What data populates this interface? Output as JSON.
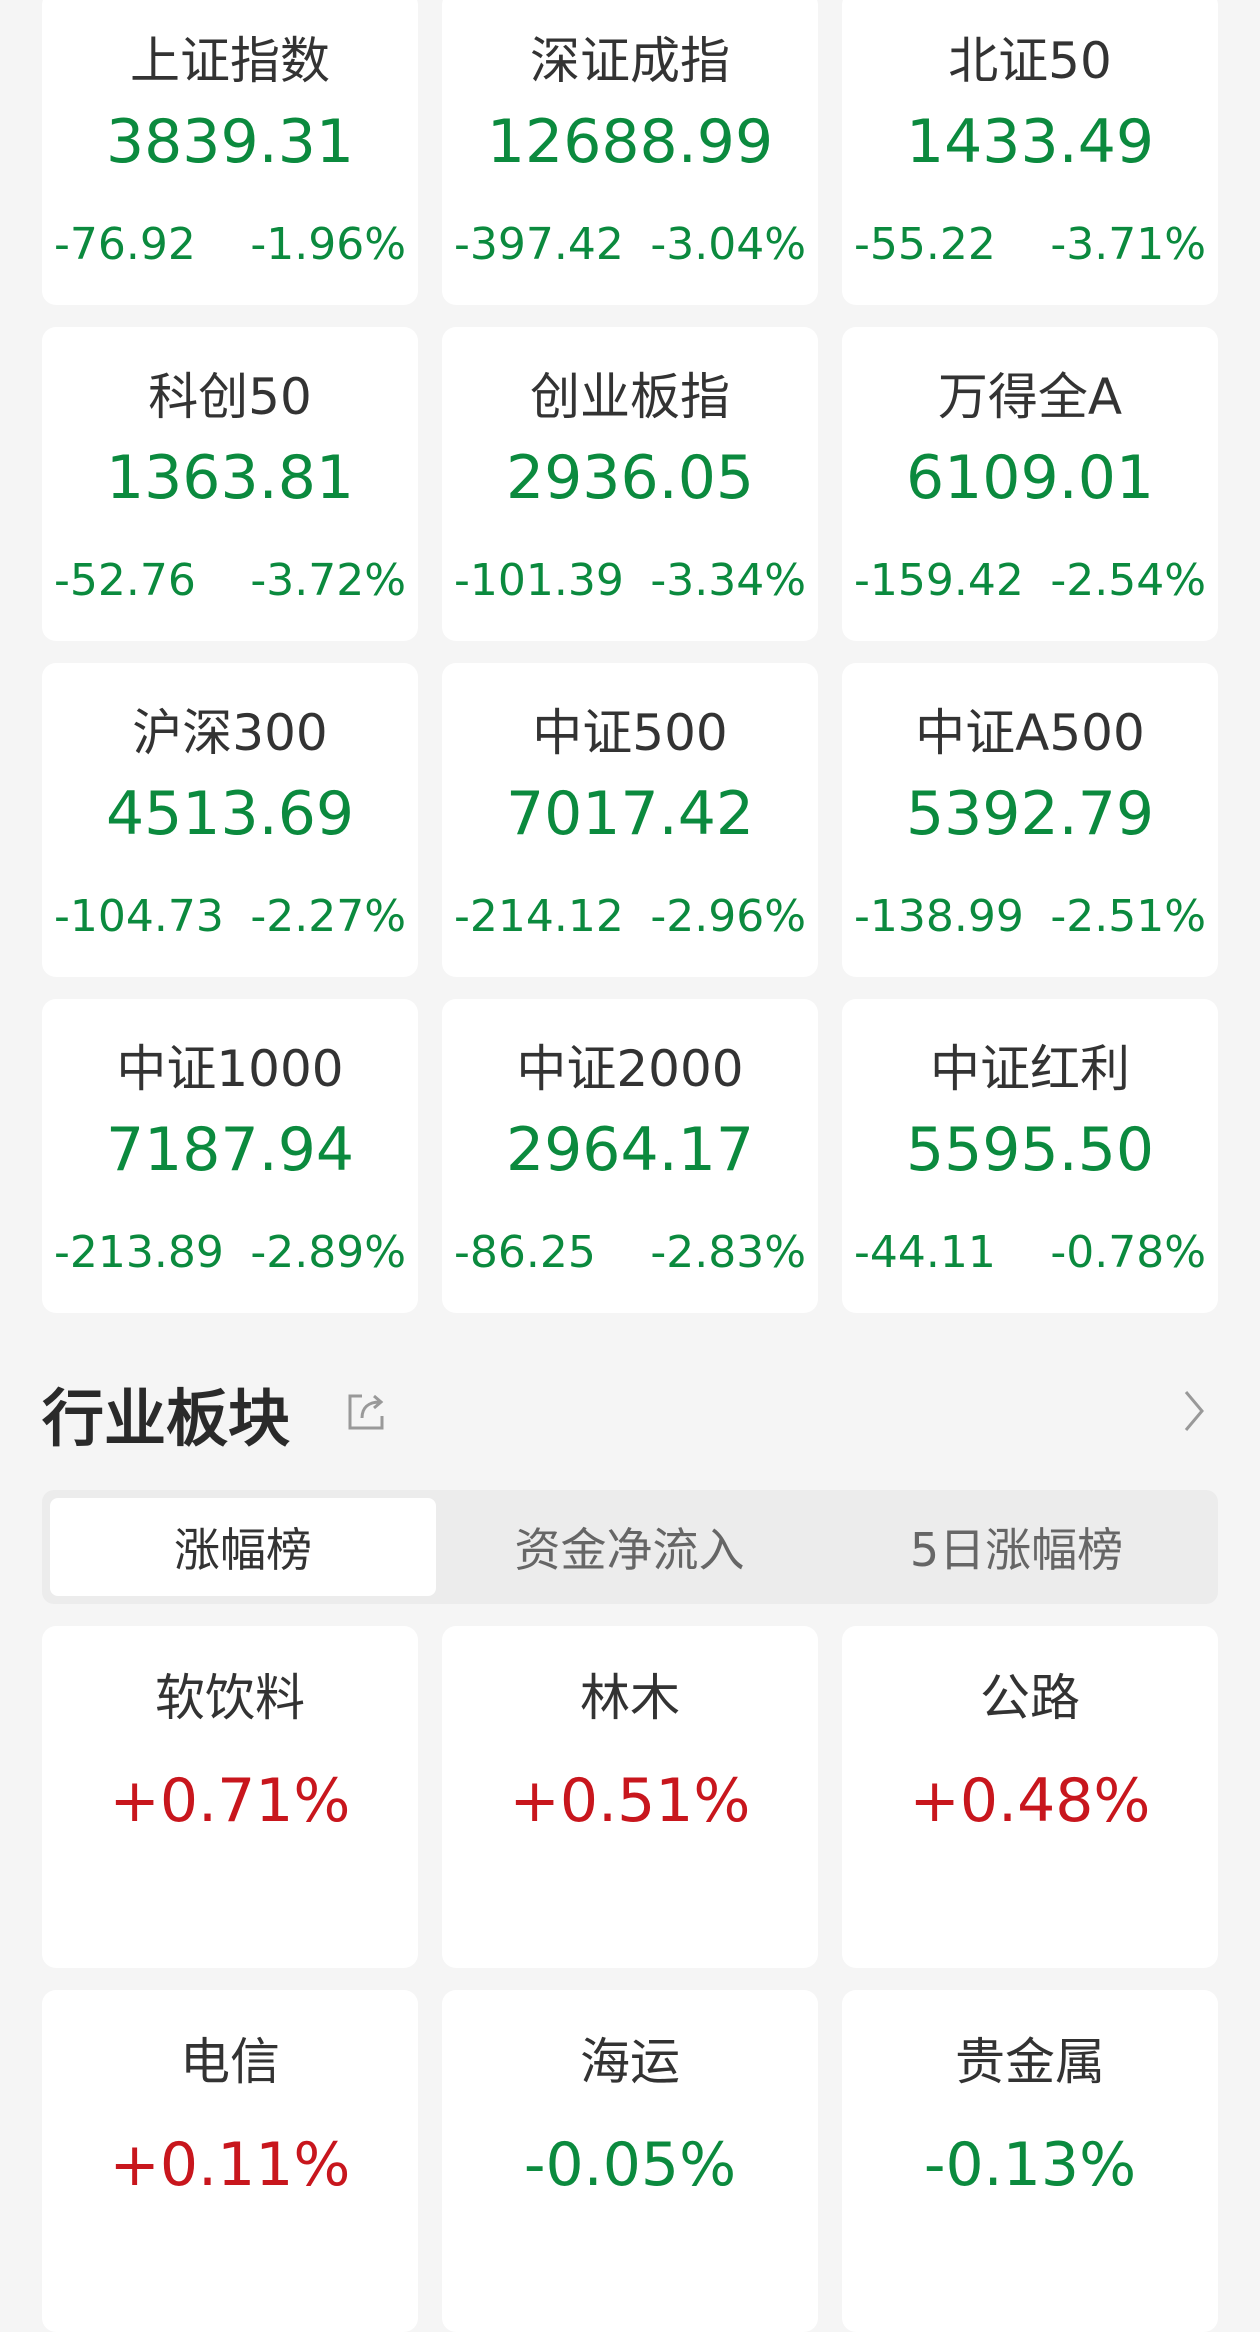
{
  "indices": [
    {
      "name": "上证指数",
      "value": "3839.31",
      "change": "-76.92",
      "pct": "-1.96%"
    },
    {
      "name": "深证成指",
      "value": "12688.99",
      "change": "-397.42",
      "pct": "-3.04%"
    },
    {
      "name": "北证50",
      "value": "1433.49",
      "change": "-55.22",
      "pct": "-3.71%"
    },
    {
      "name": "科创50",
      "value": "1363.81",
      "change": "-52.76",
      "pct": "-3.72%"
    },
    {
      "name": "创业板指",
      "value": "2936.05",
      "change": "-101.39",
      "pct": "-3.34%"
    },
    {
      "name": "万得全A",
      "value": "6109.01",
      "change": "-159.42",
      "pct": "-2.54%"
    },
    {
      "name": "沪深300",
      "value": "4513.69",
      "change": "-104.73",
      "pct": "-2.27%"
    },
    {
      "name": "中证500",
      "value": "7017.42",
      "change": "-214.12",
      "pct": "-2.96%"
    },
    {
      "name": "中证A500",
      "value": "5392.79",
      "change": "-138.99",
      "pct": "-2.51%"
    },
    {
      "name": "中证1000",
      "value": "7187.94",
      "change": "-213.89",
      "pct": "-2.89%"
    },
    {
      "name": "中证2000",
      "value": "2964.17",
      "change": "-86.25",
      "pct": "-2.83%"
    },
    {
      "name": "中证红利",
      "value": "5595.50",
      "change": "-44.11",
      "pct": "-0.78%"
    }
  ],
  "sector": {
    "title": "行业板块",
    "tabs": [
      "涨幅榜",
      "资金净流入",
      "5日涨幅榜"
    ],
    "active_tab": 0,
    "items": [
      {
        "name": "软饮料",
        "pct": "+0.71%",
        "dir": "up"
      },
      {
        "name": "林木",
        "pct": "+0.51%",
        "dir": "up"
      },
      {
        "name": "公路",
        "pct": "+0.48%",
        "dir": "up"
      },
      {
        "name": "电信",
        "pct": "+0.11%",
        "dir": "up"
      },
      {
        "name": "海运",
        "pct": "-0.05%",
        "dir": "down"
      },
      {
        "name": "贵金属",
        "pct": "-0.13%",
        "dir": "down"
      }
    ]
  },
  "colors": {
    "up": "#c8161d",
    "down": "#0b8a3e"
  },
  "icons": {
    "share": "share-icon",
    "more": "chevron-right-icon"
  }
}
